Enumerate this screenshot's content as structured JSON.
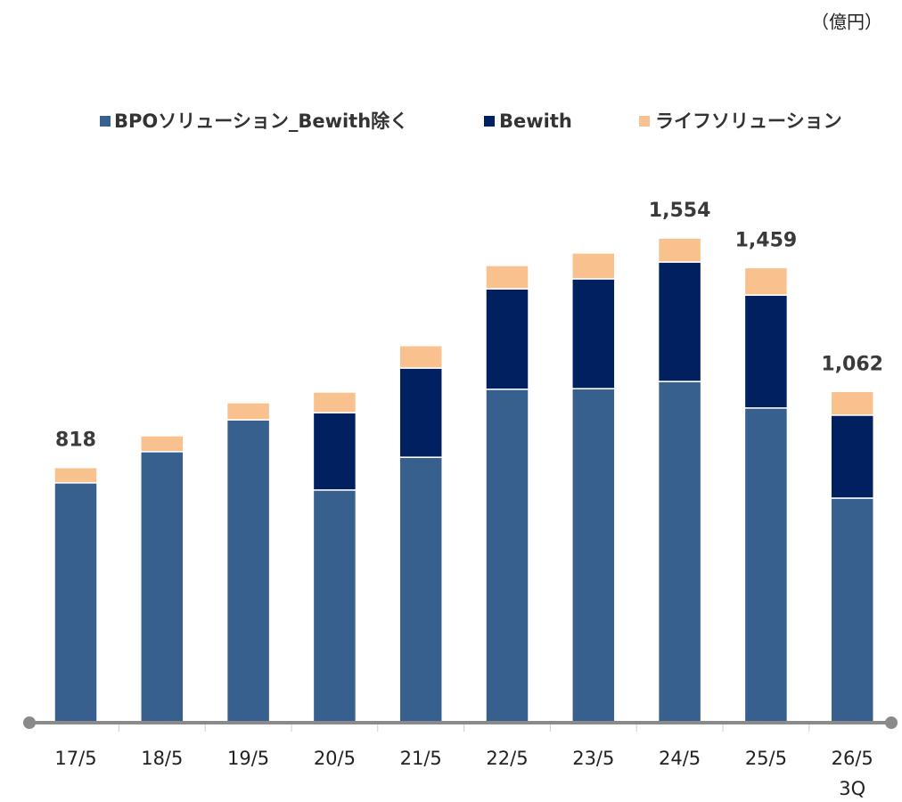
{
  "chart_data": {
    "type": "stacked_bar",
    "unit": "（億円）",
    "categories": [
      "17/5",
      "18/5",
      "19/5",
      "20/5",
      "21/5",
      "22/5",
      "23/5",
      "24/5",
      "25/5",
      "26/5"
    ],
    "category_notes": [
      null,
      null,
      null,
      null,
      null,
      null,
      null,
      null,
      null,
      "3Q"
    ],
    "series": [
      {
        "name": "BPOソリューション_Bewith除く",
        "color": "#37608f",
        "values": [
          769,
          869,
          971,
          746,
          851,
          1069,
          1071,
          1094,
          1009,
          720
        ]
      },
      {
        "name": "Bewith",
        "color": "#002060",
        "values": [
          null,
          null,
          null,
          248,
          286,
          322,
          352,
          383,
          362,
          266
        ]
      },
      {
        "name": "ライフソリューション",
        "color": "#f8c18e",
        "values": [
          49,
          51,
          55,
          66,
          72,
          75,
          83,
          77,
          88,
          76
        ]
      }
    ],
    "totals": [
      818,
      null,
      null,
      null,
      null,
      null,
      null,
      1554,
      1459,
      1062
    ],
    "total_labels": [
      "818",
      null,
      null,
      null,
      null,
      null,
      null,
      "1,554",
      "1,459",
      "1,062"
    ]
  }
}
